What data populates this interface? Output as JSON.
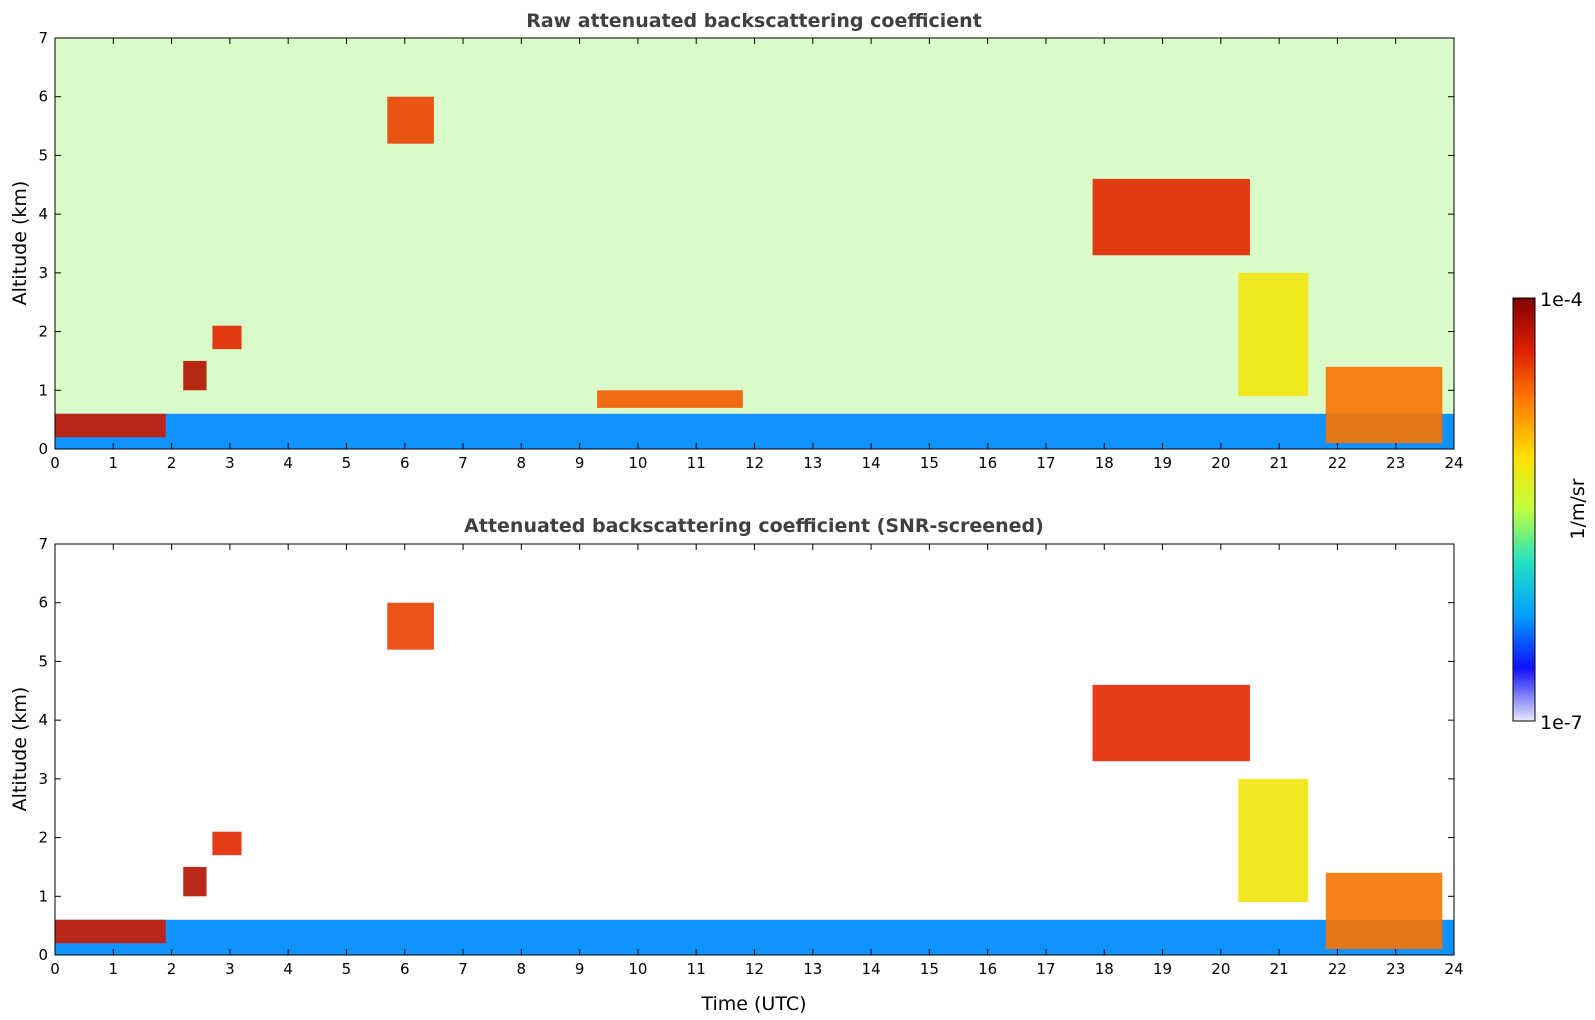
{
  "chart_data": [
    {
      "type": "heatmap",
      "title": "Raw attenuated backscattering coefficient",
      "xlabel": "",
      "ylabel": "Altitude (km)",
      "xlim": [
        0,
        24
      ],
      "ylim": [
        0,
        7
      ],
      "xticks": [
        "0",
        "1",
        "2",
        "3",
        "4",
        "5",
        "6",
        "7",
        "8",
        "9",
        "10",
        "11",
        "12",
        "13",
        "14",
        "15",
        "16",
        "17",
        "18",
        "19",
        "20",
        "21",
        "22",
        "23",
        "24"
      ],
      "yticks": [
        "0",
        "1",
        "2",
        "3",
        "4",
        "5",
        "6",
        "7"
      ],
      "grid": false,
      "features": [
        {
          "desc": "boundary layer aerosol",
          "x": [
            0,
            24
          ],
          "y": [
            0,
            0.6
          ],
          "log10_value": -6.3
        },
        {
          "desc": "cloud base",
          "x": [
            0,
            1.9
          ],
          "y": [
            0.2,
            0.6
          ],
          "log10_value": -4.3
        },
        {
          "desc": "rising cloud",
          "x": [
            2.2,
            2.6
          ],
          "y": [
            1.0,
            1.5
          ],
          "log10_value": -4.2
        },
        {
          "desc": "mid cloud",
          "x": [
            2.7,
            3.2
          ],
          "y": [
            1.7,
            2.1
          ],
          "log10_value": -4.4
        },
        {
          "desc": "elevated layer",
          "x": [
            5.7,
            6.5
          ],
          "y": [
            5.2,
            6.0
          ],
          "log10_value": -4.5
        },
        {
          "desc": "cloud top layer",
          "x": [
            9.3,
            11.8
          ],
          "y": [
            0.7,
            1.0
          ],
          "log10_value": -4.6
        },
        {
          "desc": "descending cirrus",
          "x": [
            17.8,
            20.5
          ],
          "y": [
            3.3,
            4.6
          ],
          "log10_value": -4.4
        },
        {
          "desc": "falling streak",
          "x": [
            20.3,
            21.5
          ],
          "y": [
            0.9,
            3.0
          ],
          "log10_value": -5.2
        },
        {
          "desc": "low cloud",
          "x": [
            21.8,
            23.8
          ],
          "y": [
            0.1,
            1.4
          ],
          "log10_value": -4.7
        }
      ]
    },
    {
      "type": "heatmap",
      "title": "Attenuated backscattering coefficient (SNR-screened)",
      "xlabel": "Time (UTC)",
      "ylabel": "Altitude (km)",
      "xlim": [
        0,
        24
      ],
      "ylim": [
        0,
        7
      ],
      "xticks": [
        "0",
        "1",
        "2",
        "3",
        "4",
        "5",
        "6",
        "7",
        "8",
        "9",
        "10",
        "11",
        "12",
        "13",
        "14",
        "15",
        "16",
        "17",
        "18",
        "19",
        "20",
        "21",
        "22",
        "23",
        "24"
      ],
      "yticks": [
        "0",
        "1",
        "2",
        "3",
        "4",
        "5",
        "6",
        "7"
      ],
      "grid": false,
      "features": [
        {
          "desc": "boundary layer aerosol",
          "x": [
            0,
            24
          ],
          "y": [
            0,
            0.6
          ],
          "log10_value": -6.3
        },
        {
          "desc": "cloud base",
          "x": [
            0,
            1.9
          ],
          "y": [
            0.2,
            0.6
          ],
          "log10_value": -4.3
        },
        {
          "desc": "rising cloud",
          "x": [
            2.2,
            2.6
          ],
          "y": [
            1.0,
            1.5
          ],
          "log10_value": -4.2
        },
        {
          "desc": "mid cloud",
          "x": [
            2.7,
            3.2
          ],
          "y": [
            1.7,
            2.1
          ],
          "log10_value": -4.4
        },
        {
          "desc": "elevated layer",
          "x": [
            5.7,
            6.5
          ],
          "y": [
            5.2,
            6.0
          ],
          "log10_value": -4.5
        },
        {
          "desc": "descending cirrus",
          "x": [
            17.8,
            20.5
          ],
          "y": [
            3.3,
            4.6
          ],
          "log10_value": -4.4
        },
        {
          "desc": "falling streak",
          "x": [
            20.3,
            21.5
          ],
          "y": [
            0.9,
            3.0
          ],
          "log10_value": -5.2
        },
        {
          "desc": "low cloud",
          "x": [
            21.8,
            23.8
          ],
          "y": [
            0.1,
            1.4
          ],
          "log10_value": -4.7
        }
      ]
    }
  ],
  "colorbar": {
    "label": "1/m/sr",
    "max_label": "1e-4",
    "min_label": "1e-7",
    "range_log10": [
      -7,
      -4
    ],
    "colors": [
      "#e8e8f8",
      "#1010ff",
      "#00a0ff",
      "#20e0c0",
      "#c0ff40",
      "#ffe000",
      "#ff8000",
      "#e02000",
      "#800000"
    ]
  }
}
